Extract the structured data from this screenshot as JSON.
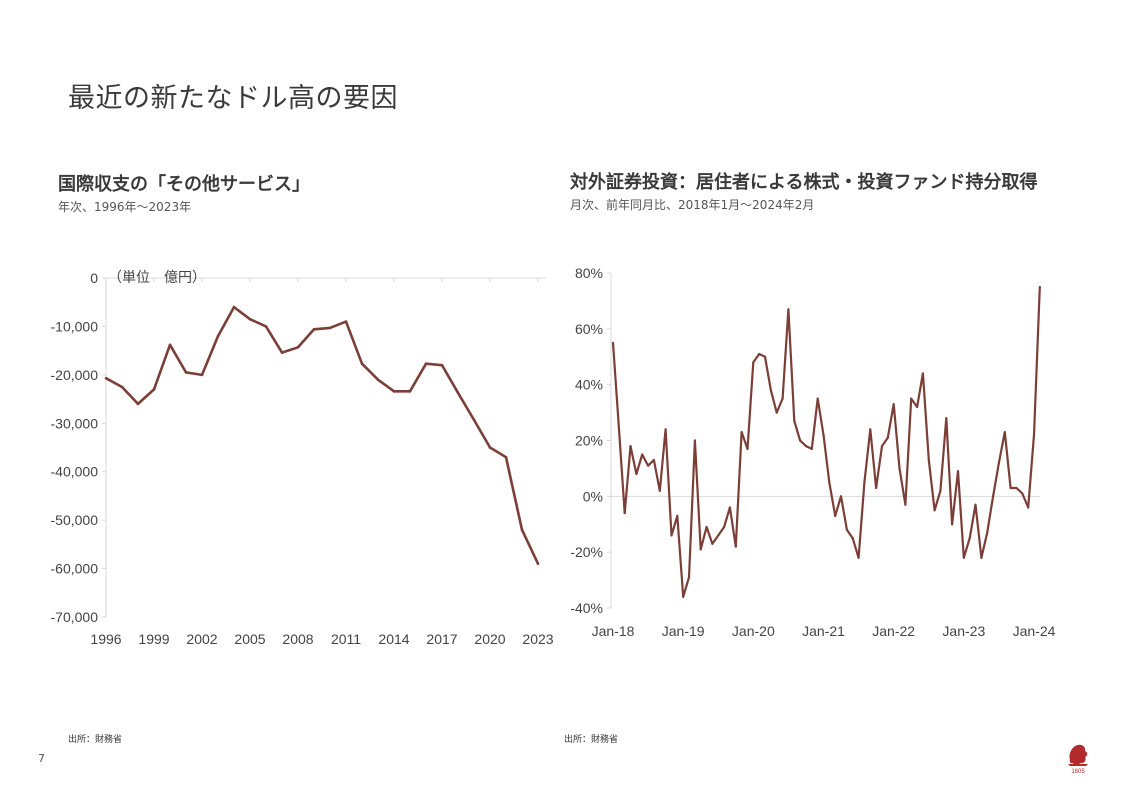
{
  "page": {
    "title": "最近の新たなドル高の要因",
    "page_number": "7",
    "accent_color": "#7b3f37"
  },
  "logo": {
    "text": "1805",
    "color": "#b22a2a"
  },
  "chart_data": [
    {
      "type": "line",
      "title": "国際収支の「その他サービス」",
      "subtitle": "年次、1996年～2023年",
      "unit_label": "（単位　億円）",
      "source": "出所：財務省",
      "ylim": [
        -70000,
        0
      ],
      "yticks": [
        0,
        -10000,
        -20000,
        -30000,
        -40000,
        -50000,
        -60000,
        -70000
      ],
      "ytick_labels": [
        "0",
        "-10,000",
        "-20,000",
        "-30,000",
        "-40,000",
        "-50,000",
        "-60,000",
        "-70,000"
      ],
      "xlim": [
        1996,
        2023
      ],
      "xticks": [
        1996,
        1999,
        2002,
        2005,
        2008,
        2011,
        2014,
        2017,
        2020,
        2023
      ],
      "xtick_labels": [
        "1996",
        "1999",
        "2002",
        "2005",
        "2008",
        "2011",
        "2014",
        "2017",
        "2020",
        "2023"
      ],
      "grid": false,
      "color": "#7b3f37",
      "x": [
        1996,
        1997,
        1998,
        1999,
        2000,
        2001,
        2002,
        2003,
        2004,
        2005,
        2006,
        2007,
        2008,
        2009,
        2010,
        2011,
        2012,
        2013,
        2014,
        2015,
        2016,
        2017,
        2018,
        2019,
        2020,
        2021,
        2022,
        2023
      ],
      "values": [
        -20700,
        -22500,
        -26000,
        -23000,
        -13800,
        -19500,
        -20000,
        -12000,
        -6000,
        -8500,
        -10000,
        -15400,
        -14300,
        -10600,
        -10300,
        -9000,
        -17700,
        -21000,
        -23400,
        -23400,
        -17700,
        -18000,
        -23700,
        -29300,
        -35000,
        -37000,
        -52000,
        -59000
      ]
    },
    {
      "type": "line",
      "title": "対外証券投資：居住者による株式・投資ファンド持分取得",
      "subtitle": "月次、前年同月比、2018年1月～2024年2月",
      "source": "出所：財務省",
      "ylim": [
        -40,
        80
      ],
      "yticks": [
        80,
        60,
        40,
        20,
        0,
        -20,
        -40
      ],
      "ytick_labels": [
        "80%",
        "60%",
        "40%",
        "20%",
        "0%",
        "-20%",
        "-40%"
      ],
      "xtick_labels": [
        "Jan-18",
        "Jan-19",
        "Jan-20",
        "Jan-21",
        "Jan-22",
        "Jan-23",
        "Jan-24"
      ],
      "zero_line": true,
      "color": "#7b3f37",
      "x_start": "2018-01",
      "x_end": "2024-02",
      "values": [
        55,
        25,
        -6,
        18,
        8,
        15,
        11,
        13,
        2,
        24,
        -14,
        -7,
        -36,
        -29,
        20,
        -19,
        -11,
        -17,
        -14,
        -11,
        -4,
        -18,
        23,
        17,
        48,
        51,
        50,
        38,
        30,
        35,
        67,
        27,
        20,
        18,
        17,
        35,
        22,
        5,
        -7,
        0,
        -12,
        -15,
        -22,
        5,
        24,
        3,
        18,
        21,
        33,
        10,
        -3,
        35,
        32,
        44,
        13,
        -5,
        2,
        28,
        -10,
        9,
        -22,
        -15,
        -3,
        -22,
        -13,
        0,
        12,
        23,
        3,
        3,
        1,
        -4,
        22,
        75
      ]
    }
  ]
}
